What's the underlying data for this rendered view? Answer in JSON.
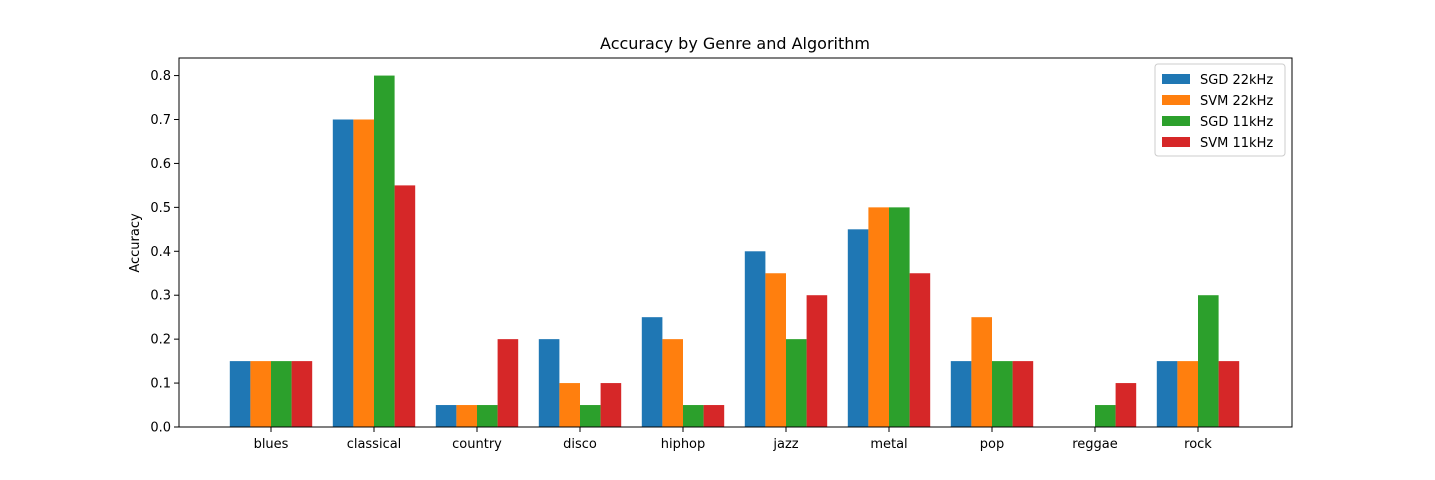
{
  "chart_data": {
    "type": "bar",
    "title": "Accuracy by Genre and Algorithm",
    "xlabel": "",
    "ylabel": "Accuracy",
    "ylim": [
      0,
      0.84
    ],
    "yticks": [
      "0.0",
      "0.1",
      "0.2",
      "0.3",
      "0.4",
      "0.5",
      "0.6",
      "0.7",
      "0.8"
    ],
    "grid": false,
    "legend_position": "top-right",
    "categories": [
      "blues",
      "classical",
      "country",
      "disco",
      "hiphop",
      "jazz",
      "metal",
      "pop",
      "reggae",
      "rock"
    ],
    "series": [
      {
        "name": "SGD 22kHz",
        "color": "#1f77b4",
        "values": [
          0.15,
          0.7,
          0.05,
          0.2,
          0.25,
          0.4,
          0.45,
          0.15,
          0.0,
          0.15
        ]
      },
      {
        "name": "SVM 22kHz",
        "color": "#ff7f0e",
        "values": [
          0.15,
          0.7,
          0.05,
          0.1,
          0.2,
          0.35,
          0.5,
          0.25,
          0.0,
          0.15
        ]
      },
      {
        "name": "SGD 11kHz",
        "color": "#2ca02c",
        "values": [
          0.15,
          0.8,
          0.05,
          0.05,
          0.05,
          0.2,
          0.5,
          0.15,
          0.05,
          0.3
        ]
      },
      {
        "name": "SVM 11kHz",
        "color": "#d62728",
        "values": [
          0.15,
          0.55,
          0.2,
          0.1,
          0.05,
          0.3,
          0.35,
          0.15,
          0.1,
          0.15
        ]
      }
    ]
  }
}
